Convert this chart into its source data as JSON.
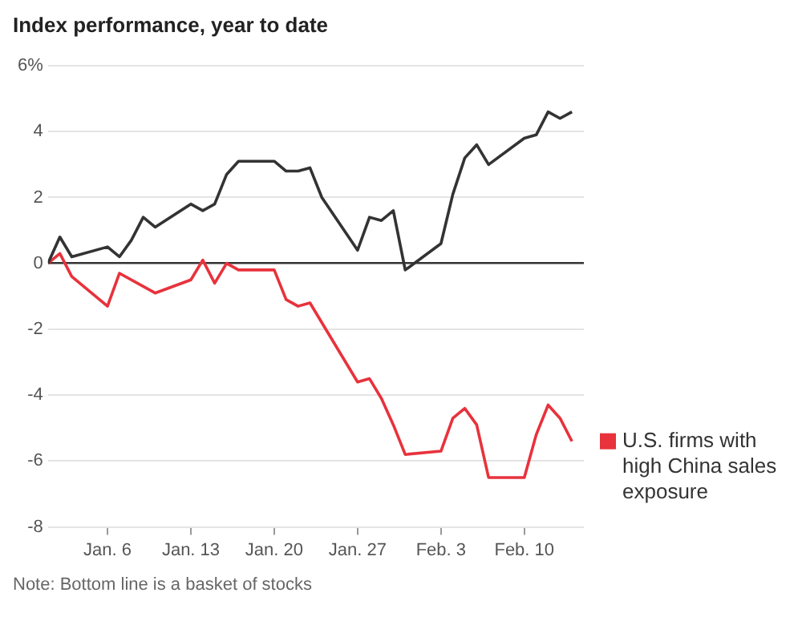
{
  "chart_data": {
    "type": "line",
    "title": "Index performance, year to date",
    "xlim": [
      "--01-01",
      "--02-15"
    ],
    "xticks": [
      {
        "value": "--01-06",
        "label": "Jan. 6"
      },
      {
        "value": "--01-13",
        "label": "Jan. 13"
      },
      {
        "value": "--01-20",
        "label": "Jan. 20"
      },
      {
        "value": "--01-27",
        "label": "Jan. 27"
      },
      {
        "value": "--02-03",
        "label": "Feb. 3"
      },
      {
        "value": "--02-10",
        "label": "Feb. 10"
      }
    ],
    "ylim": [
      -8,
      6
    ],
    "yticks": [
      {
        "value": 6,
        "label": "6%"
      },
      4,
      2,
      0,
      -2,
      -4,
      -6,
      -8
    ],
    "grid": "y",
    "legend": "right",
    "marker": "none",
    "line_style": "solid",
    "series": [
      {
        "color": "#333333",
        "x": [
          "--01-01",
          "--01-02",
          "--01-03",
          "--01-06",
          "--01-07",
          "--01-08",
          "--01-09",
          "--01-10",
          "--01-13",
          "--01-14",
          "--01-15",
          "--01-16",
          "--01-17",
          "--01-20",
          "--01-21",
          "--01-22",
          "--01-23",
          "--01-24",
          "--01-27",
          "--01-28",
          "--01-29",
          "--01-30",
          "--01-31",
          "--02-03",
          "--02-04",
          "--02-05",
          "--02-06",
          "--02-07",
          "--02-10",
          "--02-11",
          "--02-12",
          "--02-13",
          "--02-14"
        ],
        "values": [
          0,
          0.8,
          0.2,
          0.5,
          0.2,
          0.7,
          1.4,
          1.1,
          1.8,
          1.6,
          1.8,
          2.7,
          3.1,
          3.1,
          2.8,
          2.8,
          2.9,
          2.0,
          0.4,
          1.4,
          1.3,
          1.6,
          -0.2,
          0.6,
          2.1,
          3.2,
          3.6,
          3.0,
          3.8,
          3.9,
          4.6,
          4.4,
          4.6
        ]
      },
      {
        "name": "U.S. firms with high China sales exposure",
        "color": "#e8323c",
        "x": [
          "--01-01",
          "--01-02",
          "--01-03",
          "--01-06",
          "--01-07",
          "--01-10",
          "--01-13",
          "--01-14",
          "--01-15",
          "--01-16",
          "--01-17",
          "--01-20",
          "--01-21",
          "--01-22",
          "--01-23",
          "--01-27",
          "--01-28",
          "--01-29",
          "--01-30",
          "--01-31",
          "--02-03",
          "--02-04",
          "--02-05",
          "--02-06",
          "--02-07",
          "--02-10",
          "--02-11",
          "--02-12",
          "--02-13",
          "--02-14"
        ],
        "values": [
          0,
          0.3,
          -0.4,
          -1.3,
          -0.3,
          -0.9,
          -0.5,
          0.1,
          -0.6,
          0,
          -0.2,
          -0.2,
          -1.1,
          -1.3,
          -1.2,
          -3.6,
          -3.5,
          -4.1,
          -4.9,
          -5.8,
          -5.7,
          -4.7,
          -4.4,
          -4.9,
          -6.5,
          -6.5,
          -5.2,
          -4.3,
          -4.7,
          -5.4
        ]
      }
    ],
    "annotations": [
      "Note: Bottom line is a basket of stocks"
    ]
  }
}
